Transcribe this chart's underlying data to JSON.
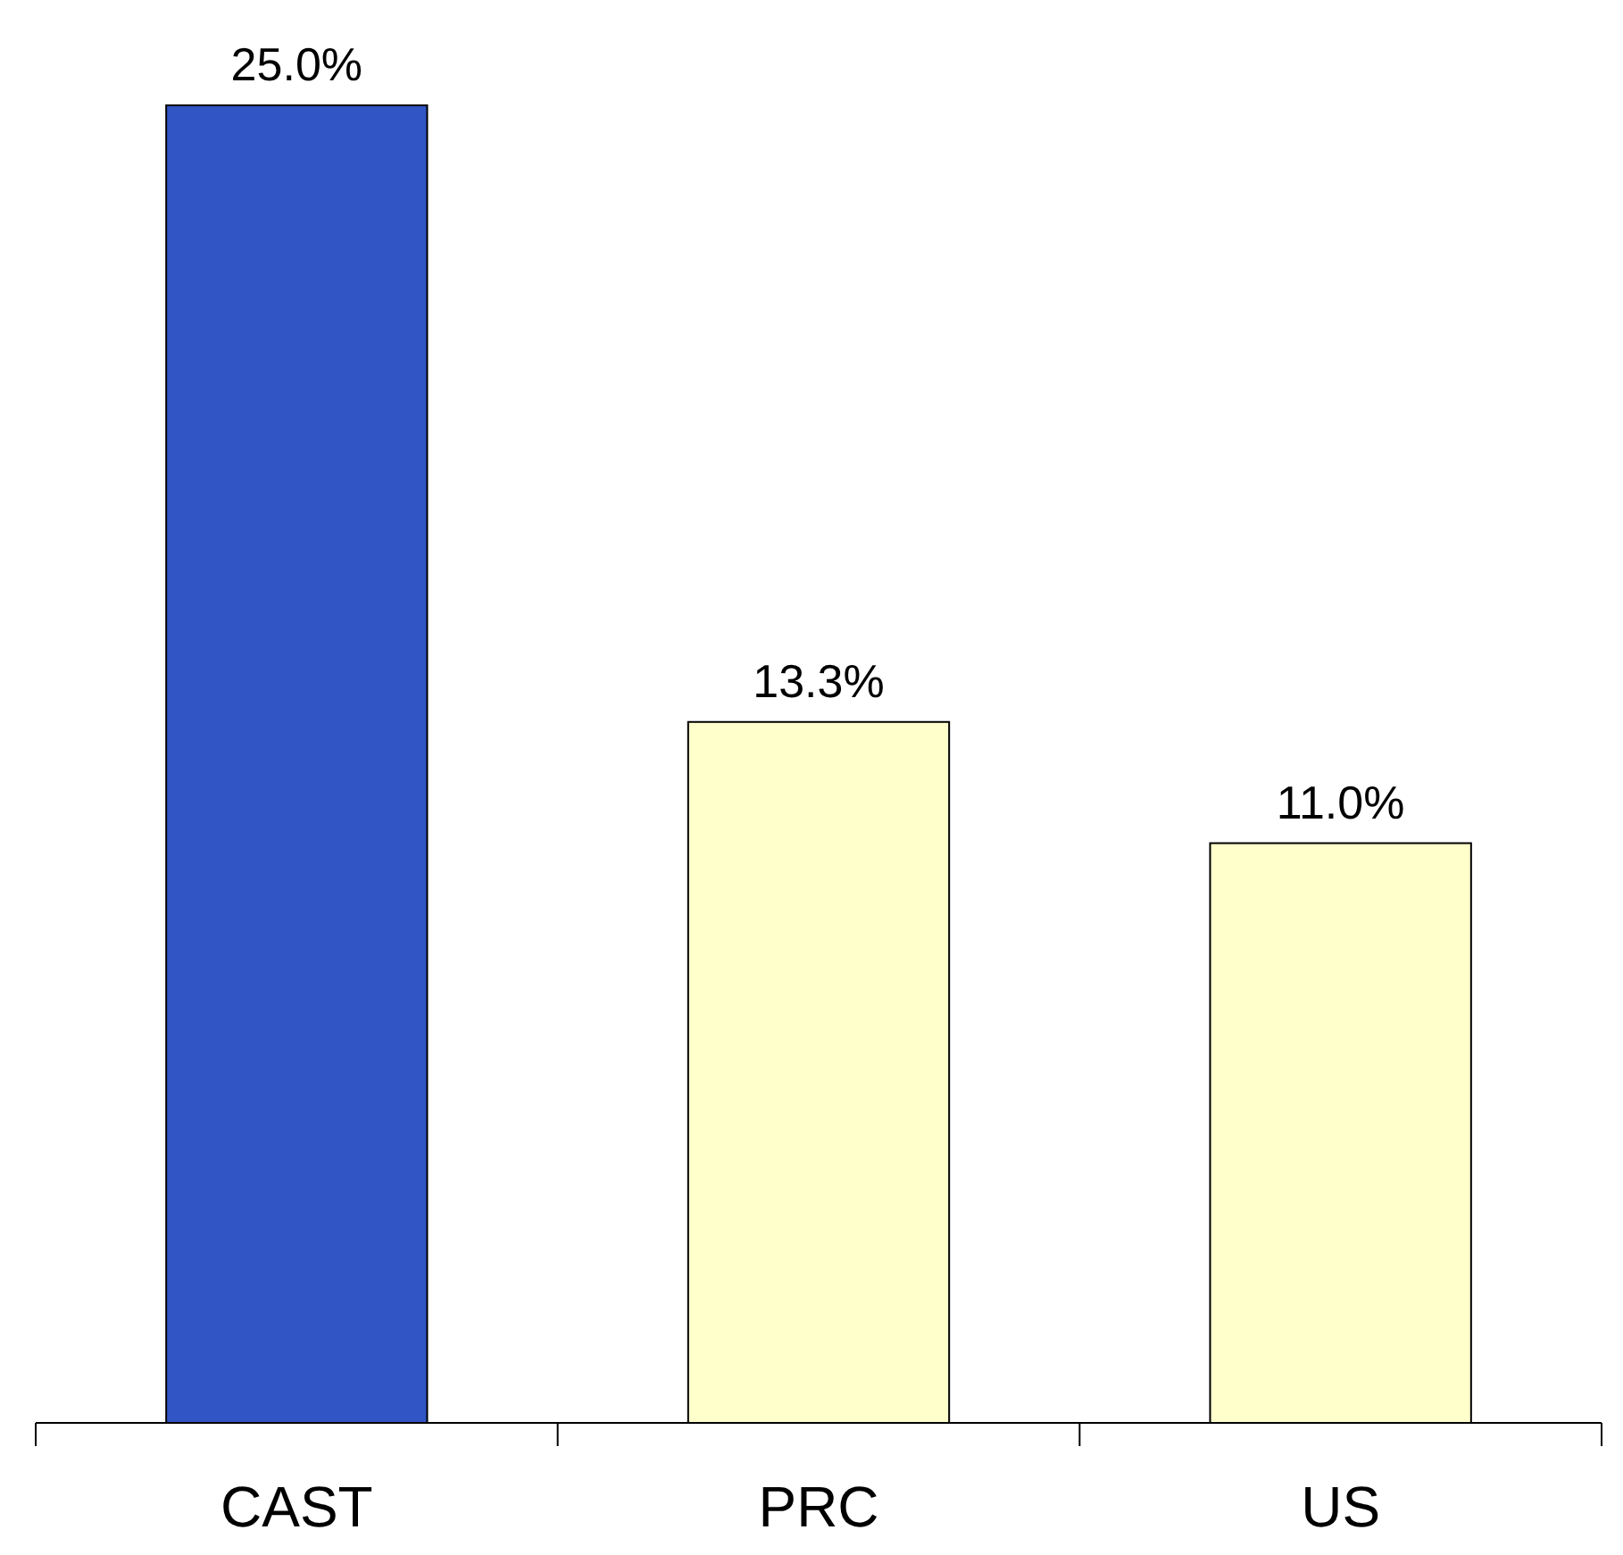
{
  "chart_data": {
    "type": "bar",
    "categories": [
      "CAST",
      "PRC",
      "US"
    ],
    "values": [
      25.0,
      13.3,
      11.0
    ],
    "colors": [
      "#3155c4",
      "#ffffcc",
      "#ffffcc"
    ],
    "value_labels": [
      "25.0%",
      "13.3%",
      "11.0%"
    ],
    "tick_labels": "x"
  }
}
